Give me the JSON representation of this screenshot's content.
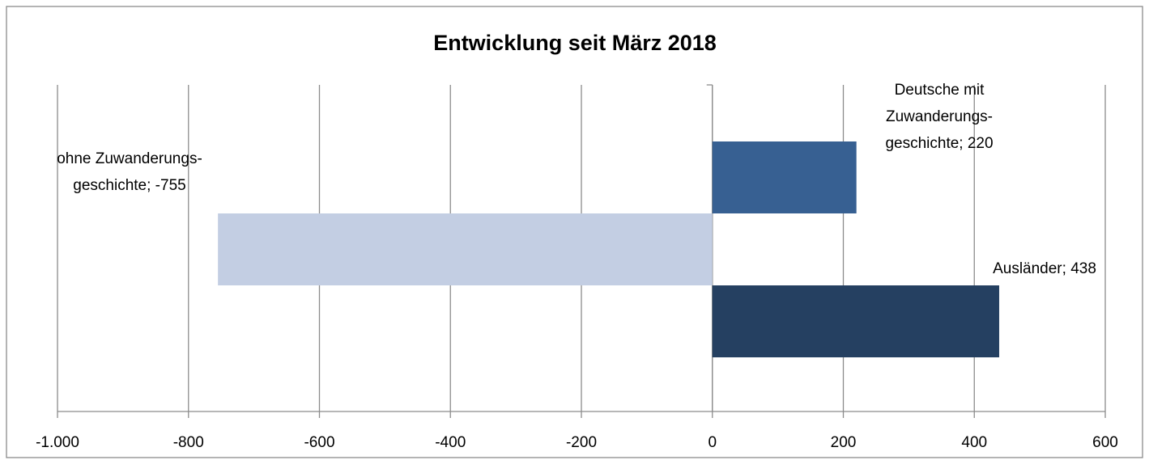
{
  "chart_data": {
    "type": "bar",
    "orientation": "horizontal",
    "title": "Entwicklung seit März 2018",
    "series": [
      {
        "color": "#376092",
        "values": [
          220
        ],
        "value_labels": [
          [
            "Deutsche mit",
            "Zuwanderungs-",
            "geschichte; 220"
          ]
        ]
      },
      {
        "color": "#c3cee3",
        "values": [
          -755
        ],
        "value_labels": [
          [
            "ohne Zuwanderungs-",
            "geschichte; -755"
          ]
        ]
      },
      {
        "color": "#254061",
        "values": [
          438
        ],
        "value_labels": [
          [
            "Ausländer; 438"
          ]
        ]
      }
    ],
    "xlim": [
      -1000,
      600
    ],
    "xticks": [
      {
        "value": -1000,
        "label": "-1.000"
      },
      -800,
      -600,
      -400,
      -200,
      0,
      200,
      400,
      600
    ],
    "grid": true
  }
}
